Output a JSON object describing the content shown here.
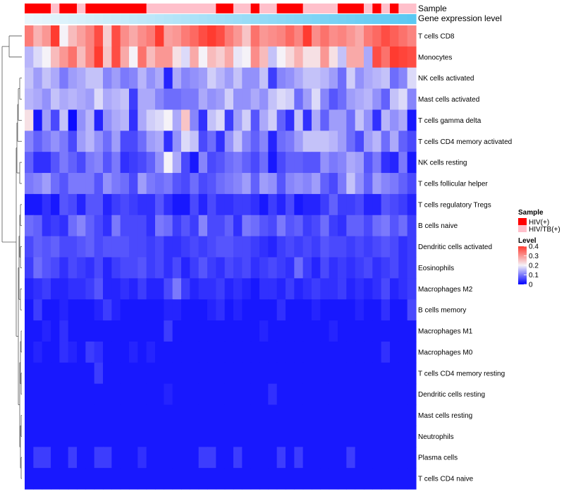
{
  "chart_data": {
    "type": "heatmap",
    "annotation_tracks": [
      "Sample",
      "Gene expression level"
    ],
    "rows": [
      "T cells CD8",
      "Monocytes",
      "NK cells activated",
      "Mast cells activated",
      "T cells gamma delta",
      "T cells CD4 memory activated",
      "NK cells resting",
      "T cells follicular helper",
      "T cells regulatory  Tregs",
      "B cells naive",
      "Dendritic cells activated",
      "Eosinophils",
      "Macrophages M2",
      "B cells memory",
      "Macrophages M1",
      "Macrophages M0",
      "T cells CD4 memory resting",
      "Dendritic cells resting",
      "Mast cells resting",
      "Neutrophils",
      "Plasma cells",
      "T cells CD4 naive"
    ],
    "n_columns": 45,
    "sample_groups": [
      "HIV(+)",
      "HIV(+)",
      "HIV(+)",
      "HIV/TB(+)",
      "HIV(+)",
      "HIV(+)",
      "HIV/TB(+)",
      "HIV(+)",
      "HIV(+)",
      "HIV(+)",
      "HIV(+)",
      "HIV(+)",
      "HIV(+)",
      "HIV(+)",
      "HIV/TB(+)",
      "HIV/TB(+)",
      "HIV/TB(+)",
      "HIV/TB(+)",
      "HIV/TB(+)",
      "HIV/TB(+)",
      "HIV/TB(+)",
      "HIV/TB(+)",
      "HIV(+)",
      "HIV(+)",
      "HIV/TB(+)",
      "HIV/TB(+)",
      "HIV(+)",
      "HIV/TB(+)",
      "HIV/TB(+)",
      "HIV(+)",
      "HIV(+)",
      "HIV(+)",
      "HIV/TB(+)",
      "HIV/TB(+)",
      "HIV/TB(+)",
      "HIV/TB(+)",
      "HIV(+)",
      "HIV(+)",
      "HIV(+)",
      "HIV/TB(+)",
      "HIV(+)",
      "HIV/TB(+)",
      "HIV(+)",
      "HIV/TB(+)",
      "HIV/TB(+)"
    ],
    "gene_expression_level": [
      0.0,
      0.023,
      0.045,
      0.068,
      0.091,
      0.114,
      0.136,
      0.159,
      0.182,
      0.205,
      0.227,
      0.25,
      0.273,
      0.295,
      0.318,
      0.341,
      0.364,
      0.386,
      0.409,
      0.432,
      0.455,
      0.477,
      0.5,
      0.523,
      0.545,
      0.568,
      0.591,
      0.614,
      0.636,
      0.659,
      0.682,
      0.705,
      0.727,
      0.75,
      0.773,
      0.795,
      0.818,
      0.841,
      0.864,
      0.886,
      0.909,
      0.932,
      0.955,
      0.977,
      1.0
    ],
    "values": [
      [
        0.33,
        0.27,
        0.3,
        0.42,
        0.2,
        0.26,
        0.29,
        0.32,
        0.38,
        0.24,
        0.38,
        0.31,
        0.28,
        0.31,
        0.33,
        0.4,
        0.29,
        0.3,
        0.33,
        0.35,
        0.38,
        0.4,
        0.38,
        0.33,
        0.3,
        0.25,
        0.34,
        0.3,
        0.31,
        0.32,
        0.35,
        0.32,
        0.4,
        0.31,
        0.34,
        0.31,
        0.32,
        0.3,
        0.28,
        0.33,
        0.35,
        0.38,
        0.36,
        0.34,
        0.32
      ],
      [
        0.15,
        0.18,
        0.2,
        0.26,
        0.3,
        0.34,
        0.26,
        0.32,
        0.4,
        0.25,
        0.38,
        0.28,
        0.2,
        0.34,
        0.26,
        0.3,
        0.3,
        0.22,
        0.18,
        0.28,
        0.2,
        0.26,
        0.24,
        0.28,
        0.19,
        0.2,
        0.31,
        0.26,
        0.16,
        0.2,
        0.23,
        0.27,
        0.22,
        0.22,
        0.3,
        0.22,
        0.16,
        0.28,
        0.28,
        0.14,
        0.38,
        0.34,
        0.4,
        0.39,
        0.38
      ],
      [
        0.16,
        0.13,
        0.16,
        0.14,
        0.1,
        0.13,
        0.14,
        0.16,
        0.16,
        0.11,
        0.13,
        0.1,
        0.11,
        0.15,
        0.12,
        0.14,
        0.03,
        0.14,
        0.11,
        0.12,
        0.13,
        0.17,
        0.15,
        0.13,
        0.16,
        0.12,
        0.12,
        0.16,
        0.05,
        0.11,
        0.12,
        0.14,
        0.16,
        0.16,
        0.15,
        0.13,
        0.09,
        0.17,
        0.12,
        0.14,
        0.15,
        0.16,
        0.09,
        0.11,
        0.18
      ],
      [
        0.15,
        0.14,
        0.12,
        0.16,
        0.14,
        0.15,
        0.14,
        0.13,
        0.18,
        0.14,
        0.15,
        0.16,
        0.05,
        0.14,
        0.14,
        0.11,
        0.09,
        0.09,
        0.1,
        0.1,
        0.14,
        0.12,
        0.13,
        0.17,
        0.12,
        0.12,
        0.14,
        0.12,
        0.16,
        0.18,
        0.17,
        0.09,
        0.13,
        0.18,
        0.11,
        0.07,
        0.09,
        0.13,
        0.14,
        0.15,
        0.12,
        0.08,
        0.16,
        0.18,
        0.11
      ],
      [
        0.22,
        0.02,
        0.13,
        0.06,
        0.16,
        0.01,
        0.12,
        0.15,
        0.03,
        0.12,
        0.14,
        0.15,
        0.04,
        0.14,
        0.17,
        0.18,
        0.2,
        0.14,
        0.25,
        0.11,
        0.04,
        0.16,
        0.18,
        0.05,
        0.13,
        0.17,
        0.07,
        0.14,
        0.17,
        0.08,
        0.04,
        0.16,
        0.04,
        0.14,
        0.08,
        0.13,
        0.13,
        0.09,
        0.16,
        0.12,
        0.04,
        0.15,
        0.12,
        0.14,
        0.02
      ],
      [
        0.11,
        0.08,
        0.1,
        0.12,
        0.1,
        0.06,
        0.13,
        0.15,
        0.12,
        0.09,
        0.13,
        0.06,
        0.06,
        0.09,
        0.13,
        0.14,
        0.04,
        0.12,
        0.18,
        0.16,
        0.06,
        0.09,
        0.04,
        0.12,
        0.16,
        0.11,
        0.08,
        0.11,
        0.03,
        0.09,
        0.1,
        0.13,
        0.16,
        0.16,
        0.16,
        0.15,
        0.13,
        0.09,
        0.06,
        0.13,
        0.15,
        0.09,
        0.14,
        0.08,
        0.06
      ],
      [
        0.08,
        0.04,
        0.04,
        0.07,
        0.1,
        0.08,
        0.06,
        0.1,
        0.11,
        0.07,
        0.1,
        0.04,
        0.05,
        0.06,
        0.08,
        0.12,
        0.2,
        0.14,
        0.06,
        0.02,
        0.11,
        0.06,
        0.07,
        0.09,
        0.1,
        0.08,
        0.06,
        0.09,
        0.02,
        0.06,
        0.08,
        0.08,
        0.07,
        0.07,
        0.12,
        0.1,
        0.11,
        0.14,
        0.13,
        0.07,
        0.1,
        0.04,
        0.03,
        0.1,
        0.02
      ],
      [
        0.1,
        0.11,
        0.13,
        0.09,
        0.07,
        0.1,
        0.1,
        0.1,
        0.07,
        0.12,
        0.1,
        0.09,
        0.06,
        0.13,
        0.1,
        0.09,
        0.1,
        0.07,
        0.06,
        0.09,
        0.06,
        0.07,
        0.09,
        0.1,
        0.11,
        0.13,
        0.08,
        0.13,
        0.12,
        0.07,
        0.11,
        0.12,
        0.11,
        0.13,
        0.08,
        0.06,
        0.1,
        0.16,
        0.12,
        0.08,
        0.13,
        0.11,
        0.1,
        0.08,
        0.06
      ],
      [
        0.02,
        0.02,
        0.04,
        0.02,
        0.07,
        0.06,
        0.03,
        0.07,
        0.07,
        0.03,
        0.05,
        0.06,
        0.05,
        0.04,
        0.04,
        0.07,
        0.04,
        0.02,
        0.02,
        0.06,
        0.03,
        0.06,
        0.04,
        0.04,
        0.05,
        0.05,
        0.04,
        0.02,
        0.05,
        0.03,
        0.06,
        0.02,
        0.03,
        0.03,
        0.05,
        0.08,
        0.05,
        0.05,
        0.06,
        0.03,
        0.03,
        0.07,
        0.06,
        0.05,
        0.03
      ],
      [
        0.09,
        0.08,
        0.04,
        0.05,
        0.04,
        0.09,
        0.11,
        0.08,
        0.06,
        0.04,
        0.1,
        0.06,
        0.06,
        0.06,
        0.04,
        0.1,
        0.09,
        0.05,
        0.07,
        0.05,
        0.11,
        0.06,
        0.06,
        0.08,
        0.04,
        0.1,
        0.09,
        0.07,
        0.06,
        0.1,
        0.07,
        0.08,
        0.05,
        0.06,
        0.09,
        0.05,
        0.04,
        0.08,
        0.08,
        0.06,
        0.09,
        0.1,
        0.07,
        0.09,
        0.05
      ],
      [
        0.06,
        0.08,
        0.07,
        0.08,
        0.06,
        0.06,
        0.07,
        0.08,
        0.06,
        0.07,
        0.07,
        0.07,
        0.06,
        0.06,
        0.05,
        0.06,
        0.04,
        0.04,
        0.05,
        0.06,
        0.05,
        0.06,
        0.07,
        0.07,
        0.06,
        0.06,
        0.05,
        0.04,
        0.03,
        0.05,
        0.06,
        0.05,
        0.06,
        0.05,
        0.07,
        0.06,
        0.06,
        0.05,
        0.06,
        0.05,
        0.06,
        0.07,
        0.06,
        0.04,
        0.05
      ],
      [
        0.05,
        0.09,
        0.07,
        0.06,
        0.04,
        0.06,
        0.05,
        0.04,
        0.06,
        0.03,
        0.05,
        0.06,
        0.06,
        0.07,
        0.05,
        0.06,
        0.04,
        0.06,
        0.03,
        0.05,
        0.07,
        0.05,
        0.04,
        0.06,
        0.05,
        0.06,
        0.04,
        0.05,
        0.06,
        0.05,
        0.04,
        0.09,
        0.05,
        0.03,
        0.06,
        0.04,
        0.05,
        0.04,
        0.05,
        0.06,
        0.04,
        0.05,
        0.06,
        0.04,
        0.05
      ],
      [
        0.03,
        0.04,
        0.05,
        0.03,
        0.03,
        0.04,
        0.04,
        0.05,
        0.07,
        0.03,
        0.03,
        0.04,
        0.03,
        0.05,
        0.03,
        0.03,
        0.06,
        0.1,
        0.05,
        0.03,
        0.04,
        0.04,
        0.05,
        0.03,
        0.04,
        0.03,
        0.02,
        0.04,
        0.04,
        0.03,
        0.05,
        0.03,
        0.04,
        0.05,
        0.04,
        0.04,
        0.05,
        0.03,
        0.04,
        0.03,
        0.04,
        0.06,
        0.03,
        0.04,
        0.05
      ],
      [
        0.02,
        0.05,
        0.02,
        0.02,
        0.03,
        0.02,
        0.02,
        0.02,
        0.03,
        0.05,
        0.03,
        0.02,
        0.02,
        0.02,
        0.02,
        0.02,
        0.03,
        0.03,
        0.02,
        0.02,
        0.02,
        0.03,
        0.04,
        0.02,
        0.03,
        0.02,
        0.02,
        0.02,
        0.02,
        0.04,
        0.02,
        0.02,
        0.02,
        0.03,
        0.02,
        0.02,
        0.02,
        0.02,
        0.03,
        0.02,
        0.02,
        0.04,
        0.02,
        0.02,
        0.06
      ],
      [
        0.02,
        0.02,
        0.03,
        0.02,
        0.04,
        0.02,
        0.02,
        0.02,
        0.02,
        0.02,
        0.02,
        0.02,
        0.02,
        0.02,
        0.02,
        0.02,
        0.05,
        0.02,
        0.02,
        0.02,
        0.02,
        0.02,
        0.02,
        0.02,
        0.02,
        0.02,
        0.02,
        0.03,
        0.02,
        0.02,
        0.02,
        0.02,
        0.02,
        0.02,
        0.02,
        0.03,
        0.02,
        0.02,
        0.02,
        0.02,
        0.02,
        0.02,
        0.02,
        0.02,
        0.02
      ],
      [
        0.02,
        0.03,
        0.02,
        0.02,
        0.04,
        0.03,
        0.02,
        0.05,
        0.04,
        0.02,
        0.02,
        0.02,
        0.03,
        0.02,
        0.03,
        0.02,
        0.02,
        0.02,
        0.02,
        0.02,
        0.02,
        0.02,
        0.02,
        0.02,
        0.02,
        0.02,
        0.02,
        0.02,
        0.02,
        0.02,
        0.02,
        0.02,
        0.02,
        0.02,
        0.02,
        0.02,
        0.02,
        0.02,
        0.02,
        0.02,
        0.02,
        0.04,
        0.02,
        0.02,
        0.02
      ],
      [
        0.02,
        0.02,
        0.02,
        0.02,
        0.02,
        0.02,
        0.02,
        0.02,
        0.05,
        0.02,
        0.02,
        0.02,
        0.02,
        0.02,
        0.02,
        0.02,
        0.02,
        0.02,
        0.02,
        0.02,
        0.02,
        0.02,
        0.02,
        0.02,
        0.02,
        0.02,
        0.02,
        0.02,
        0.02,
        0.02,
        0.02,
        0.02,
        0.02,
        0.02,
        0.02,
        0.02,
        0.02,
        0.02,
        0.02,
        0.02,
        0.02,
        0.02,
        0.02,
        0.02,
        0.02
      ],
      [
        0.02,
        0.02,
        0.02,
        0.02,
        0.02,
        0.02,
        0.02,
        0.02,
        0.02,
        0.02,
        0.02,
        0.02,
        0.02,
        0.02,
        0.02,
        0.02,
        0.03,
        0.02,
        0.02,
        0.02,
        0.02,
        0.02,
        0.02,
        0.02,
        0.02,
        0.02,
        0.02,
        0.02,
        0.04,
        0.02,
        0.02,
        0.02,
        0.02,
        0.02,
        0.02,
        0.02,
        0.02,
        0.02,
        0.02,
        0.02,
        0.02,
        0.02,
        0.02,
        0.02,
        0.02
      ],
      [
        0.02,
        0.02,
        0.02,
        0.02,
        0.02,
        0.02,
        0.02,
        0.02,
        0.02,
        0.02,
        0.02,
        0.02,
        0.02,
        0.02,
        0.02,
        0.02,
        0.02,
        0.02,
        0.02,
        0.02,
        0.02,
        0.02,
        0.02,
        0.02,
        0.02,
        0.02,
        0.02,
        0.02,
        0.02,
        0.02,
        0.02,
        0.02,
        0.02,
        0.02,
        0.02,
        0.02,
        0.02,
        0.02,
        0.02,
        0.02,
        0.02,
        0.02,
        0.02,
        0.02,
        0.02
      ],
      [
        0.02,
        0.02,
        0.02,
        0.02,
        0.02,
        0.02,
        0.02,
        0.02,
        0.02,
        0.02,
        0.02,
        0.02,
        0.02,
        0.02,
        0.02,
        0.02,
        0.02,
        0.02,
        0.02,
        0.02,
        0.02,
        0.02,
        0.02,
        0.02,
        0.02,
        0.02,
        0.02,
        0.02,
        0.02,
        0.02,
        0.02,
        0.02,
        0.02,
        0.02,
        0.02,
        0.02,
        0.02,
        0.02,
        0.02,
        0.02,
        0.02,
        0.02,
        0.02,
        0.02,
        0.02
      ],
      [
        0.02,
        0.05,
        0.05,
        0.02,
        0.02,
        0.05,
        0.02,
        0.02,
        0.05,
        0.05,
        0.02,
        0.02,
        0.02,
        0.04,
        0.02,
        0.02,
        0.02,
        0.02,
        0.02,
        0.02,
        0.05,
        0.05,
        0.02,
        0.02,
        0.05,
        0.02,
        0.02,
        0.02,
        0.02,
        0.05,
        0.02,
        0.05,
        0.02,
        0.02,
        0.02,
        0.02,
        0.02,
        0.05,
        0.02,
        0.02,
        0.02,
        0.02,
        0.02,
        0.02,
        0.02
      ],
      [
        0.02,
        0.02,
        0.02,
        0.02,
        0.02,
        0.02,
        0.02,
        0.02,
        0.02,
        0.02,
        0.02,
        0.02,
        0.02,
        0.02,
        0.02,
        0.02,
        0.02,
        0.02,
        0.02,
        0.02,
        0.02,
        0.02,
        0.02,
        0.02,
        0.02,
        0.02,
        0.02,
        0.02,
        0.02,
        0.02,
        0.02,
        0.02,
        0.02,
        0.02,
        0.02,
        0.02,
        0.02,
        0.02,
        0.02,
        0.02,
        0.02,
        0.02,
        0.02,
        0.02,
        0.02
      ]
    ],
    "legend_sample": {
      "title": "Sample",
      "entries": [
        {
          "label": "HIV(+)",
          "color": "#ff0000"
        },
        {
          "label": "HIV/TB(+)",
          "color": "#ffc0cb"
        }
      ]
    },
    "legend_level": {
      "title": "Level",
      "ticks": [
        0.4,
        0.3,
        0.2,
        0.1,
        0
      ],
      "range": [
        0,
        0.4
      ],
      "colors": {
        "low": "#0000ff",
        "mid": "#f5f2f8",
        "high": "#ff3b30"
      }
    },
    "gene_level_colors": {
      "low": "#eaf6fc",
      "high": "#5bc8f2"
    }
  }
}
